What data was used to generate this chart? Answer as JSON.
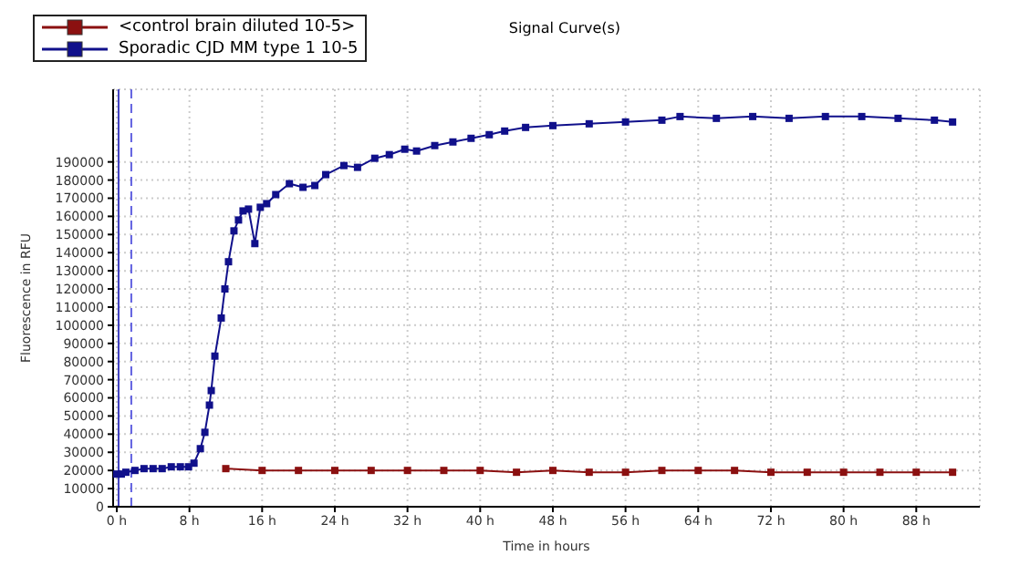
{
  "chart_data": {
    "type": "line",
    "title": "Signal Curve(s)",
    "xlabel": "Time in hours",
    "ylabel": "Fluorescence in RFU",
    "xlim": [
      -0.4,
      95
    ],
    "xticks": [
      {
        "value": 0,
        "label": "0 h"
      },
      {
        "value": 8,
        "label": "8 h"
      },
      {
        "value": 16,
        "label": "16 h"
      },
      {
        "value": 24,
        "label": "24 h"
      },
      {
        "value": 32,
        "label": "32 h"
      },
      {
        "value": 40,
        "label": "40 h"
      },
      {
        "value": 48,
        "label": "48 h"
      },
      {
        "value": 56,
        "label": "56 h"
      },
      {
        "value": 64,
        "label": "64 h"
      },
      {
        "value": 72,
        "label": "72 h"
      },
      {
        "value": 80,
        "label": "80 h"
      },
      {
        "value": 88,
        "label": "88 h"
      }
    ],
    "ylim": [
      0,
      230000
    ],
    "yticks": [
      0,
      10000,
      20000,
      30000,
      40000,
      50000,
      60000,
      70000,
      80000,
      90000,
      100000,
      110000,
      120000,
      130000,
      140000,
      150000,
      160000,
      170000,
      180000,
      190000
    ],
    "grid": true,
    "legend": "top left",
    "marker": "square",
    "line_style": "solid",
    "ref_lines": [
      {
        "axis": "x",
        "value": 0.2,
        "color": "#4040c0",
        "line_style": "solid"
      },
      {
        "axis": "x",
        "value": 1.6,
        "color": "#6060e0",
        "line_style": "dashed"
      }
    ],
    "series": [
      {
        "name": "<control brain diluted 10-5>",
        "color": "#8b1010",
        "x": [
          12,
          16,
          20,
          24,
          28,
          32,
          36,
          40,
          44,
          48,
          52,
          56,
          60,
          64,
          68,
          72,
          76,
          80,
          84,
          88,
          92
        ],
        "values": [
          21000,
          20000,
          20000,
          20000,
          20000,
          20000,
          20000,
          20000,
          19000,
          20000,
          19000,
          19000,
          20000,
          20000,
          20000,
          19000,
          19000,
          19000,
          19000,
          19000,
          19000
        ]
      },
      {
        "name": "Sporadic CJD MM type 1 10-5",
        "color": "#10108b",
        "x": [
          0,
          0.5,
          1,
          2,
          3,
          4,
          5,
          6,
          7,
          7.9,
          8.5,
          9.2,
          9.7,
          10.2,
          10.4,
          10.8,
          11.5,
          11.9,
          12.3,
          12.9,
          13.4,
          13.9,
          14.5,
          15.2,
          15.8,
          16.5,
          17.5,
          19,
          20.5,
          21.8,
          23,
          25,
          26.5,
          28.4,
          30,
          31.7,
          33,
          35,
          37,
          39,
          41,
          42.7,
          45,
          48,
          52,
          56,
          60,
          62,
          66,
          70,
          74,
          78,
          82,
          86,
          90,
          92
        ],
        "values": [
          18000,
          18000,
          19000,
          20000,
          21000,
          21000,
          21000,
          22000,
          22000,
          22000,
          24000,
          32000,
          41000,
          56000,
          64000,
          83000,
          104000,
          120000,
          135000,
          152000,
          158000,
          163000,
          164000,
          145000,
          165000,
          167000,
          172000,
          178000,
          176000,
          177000,
          183000,
          188000,
          187000,
          192000,
          194000,
          197000,
          196000,
          199000,
          201000,
          203000,
          205000,
          207000,
          209000,
          210000,
          211000,
          212000,
          213000,
          215000,
          214000,
          215000,
          214000,
          215000,
          215000,
          214000,
          213000,
          212000
        ]
      }
    ]
  }
}
